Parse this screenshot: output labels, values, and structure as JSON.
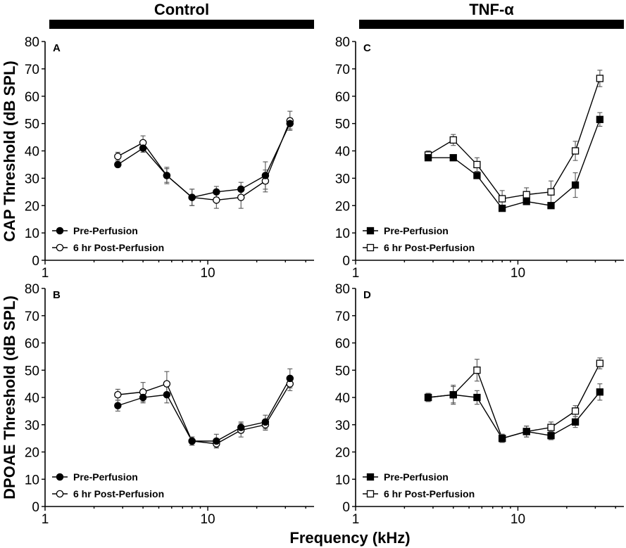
{
  "figure": {
    "group_titles": [
      "Control",
      "TNF-α"
    ],
    "x_axis_title": "Frequency (kHz)"
  },
  "chart_data": [
    {
      "type": "line",
      "panel": "A",
      "group": "Control",
      "ylabel": "CAP Threshold (dB SPL)",
      "xlabel": "Frequency (kHz)",
      "xscale": "log",
      "xlim": [
        1,
        45
      ],
      "xticks": [
        1,
        10
      ],
      "ylim": [
        0,
        80
      ],
      "yticks": [
        0,
        10,
        20,
        30,
        40,
        50,
        60,
        70,
        80
      ],
      "marker_style": "circle",
      "legend_position": "bottom-left",
      "x": [
        2.8,
        4,
        5.6,
        8,
        11.3,
        16,
        22.6,
        32
      ],
      "series": [
        {
          "name": "Pre-Perfusion",
          "fill": "filled",
          "values": [
            35,
            41,
            31,
            23,
            25,
            26,
            31,
            50
          ],
          "errors": [
            1,
            1.5,
            3,
            3,
            2,
            2.5,
            5,
            2
          ]
        },
        {
          "name": "6 hr Post-Perfusion",
          "fill": "open",
          "values": [
            38,
            43,
            31,
            23,
            22,
            23,
            29,
            51
          ],
          "errors": [
            1.5,
            2.5,
            2.5,
            3,
            3,
            4,
            4,
            3.5
          ]
        }
      ]
    },
    {
      "type": "line",
      "panel": "B",
      "group": "Control",
      "ylabel": "DPOAE Threshold (dB SPL)",
      "xlabel": "Frequency (kHz)",
      "xscale": "log",
      "xlim": [
        1,
        45
      ],
      "xticks": [
        1,
        10
      ],
      "ylim": [
        0,
        80
      ],
      "yticks": [
        0,
        10,
        20,
        30,
        40,
        50,
        60,
        70,
        80
      ],
      "marker_style": "circle",
      "legend_position": "bottom-left",
      "x": [
        2.8,
        4,
        5.6,
        8,
        11.3,
        16,
        22.6,
        32
      ],
      "series": [
        {
          "name": "Pre-Perfusion",
          "fill": "filled",
          "values": [
            37,
            40,
            41,
            24,
            24,
            29,
            31,
            47
          ],
          "errors": [
            2,
            2,
            3,
            1.5,
            2.5,
            2,
            2.5,
            3.5
          ]
        },
        {
          "name": "6 hr Post-Perfusion",
          "fill": "open",
          "values": [
            41,
            42,
            45,
            24,
            23,
            28,
            30,
            45
          ],
          "errors": [
            2,
            3.5,
            4.5,
            1.5,
            1.5,
            2.5,
            2,
            2.5
          ]
        }
      ]
    },
    {
      "type": "line",
      "panel": "C",
      "group": "TNF-α",
      "ylabel": "CAP Threshold (dB SPL)",
      "xlabel": "Frequency (kHz)",
      "xscale": "log",
      "xlim": [
        1,
        45
      ],
      "xticks": [
        1,
        10
      ],
      "ylim": [
        0,
        80
      ],
      "yticks": [
        0,
        10,
        20,
        30,
        40,
        50,
        60,
        70,
        80
      ],
      "marker_style": "square",
      "legend_position": "bottom-left",
      "x": [
        2.8,
        4,
        5.6,
        8,
        11.3,
        16,
        22.6,
        32
      ],
      "series": [
        {
          "name": "Pre-Perfusion",
          "fill": "filled",
          "values": [
            37.5,
            37.5,
            31,
            19,
            21.5,
            20,
            27.5,
            51.5
          ],
          "errors": [
            1,
            1,
            1,
            1,
            1,
            1,
            4.5,
            2.5
          ]
        },
        {
          "name": "6 hr Post-Perfusion",
          "fill": "open",
          "values": [
            38.5,
            44,
            35,
            22.5,
            24,
            25,
            40,
            66.5
          ],
          "errors": [
            1.5,
            2,
            2.5,
            3,
            2.5,
            4,
            3.5,
            3
          ]
        }
      ]
    },
    {
      "type": "line",
      "panel": "D",
      "group": "TNF-α",
      "ylabel": "DPOAE Threshold (dB SPL)",
      "xlabel": "Frequency (kHz)",
      "xscale": "log",
      "xlim": [
        1,
        45
      ],
      "xticks": [
        1,
        10
      ],
      "ylim": [
        0,
        80
      ],
      "yticks": [
        0,
        10,
        20,
        30,
        40,
        50,
        60,
        70,
        80
      ],
      "marker_style": "square",
      "legend_position": "bottom-left",
      "x": [
        2.8,
        4,
        5.6,
        8,
        11.3,
        16,
        22.6,
        32
      ],
      "series": [
        {
          "name": "Pre-Perfusion",
          "fill": "filled",
          "values": [
            40,
            41,
            40,
            25,
            27.5,
            26,
            31,
            42
          ],
          "errors": [
            1.5,
            3.5,
            2.5,
            1.5,
            2,
            1.5,
            2,
            3
          ]
        },
        {
          "name": "6 hr Post-Perfusion",
          "fill": "open",
          "values": [
            40,
            41,
            50,
            25,
            27.5,
            29,
            35,
            52.5
          ],
          "errors": [
            1.5,
            3,
            4,
            1.5,
            2,
            2,
            2,
            2
          ]
        }
      ]
    }
  ]
}
